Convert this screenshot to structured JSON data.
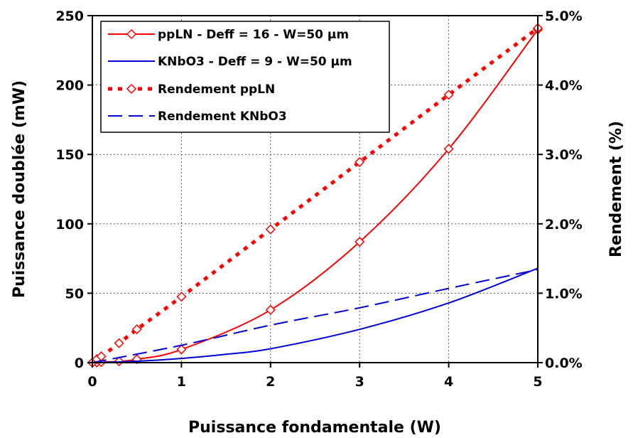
{
  "chart_data": {
    "type": "line",
    "xlabel": "Puissance fondamentale (W)",
    "ylabel": "Puissance doublée (mW)",
    "y2label": "Rendement (%)",
    "xlim": [
      0,
      5
    ],
    "ylim": [
      0,
      250
    ],
    "y2lim": [
      0,
      0.05
    ],
    "x_ticks": [
      "0",
      "1",
      "2",
      "3",
      "4",
      "5"
    ],
    "y_ticks": [
      "0",
      "50",
      "100",
      "150",
      "200",
      "250"
    ],
    "y2_ticks": [
      "0.0%",
      "1.0%",
      "2.0%",
      "3.0%",
      "4.0%",
      "5.0%"
    ],
    "grid": true,
    "legend_position": "top-left",
    "colors": {
      "red": "#ff0000",
      "blue": "#0000dd",
      "grid": "#555555"
    },
    "series": [
      {
        "name": "ppLN - Deff = 16 - W=50 µm",
        "axis": "left",
        "style": "solid-line-with-diamond",
        "x": [
          0,
          0.05,
          0.1,
          0.3,
          0.5,
          1,
          2,
          3,
          4,
          5
        ],
        "y": [
          0,
          0.1,
          0.4,
          0.9,
          2.4,
          9.5,
          38,
          87,
          154,
          240
        ]
      },
      {
        "name": "KNbO3 - Deff = 9 - W=50 µm",
        "axis": "left",
        "style": "solid-line",
        "x": [
          0,
          0.5,
          1,
          1.5,
          2,
          3,
          4,
          5
        ],
        "y": [
          0,
          1,
          3,
          6,
          10,
          24,
          43,
          68
        ]
      },
      {
        "name": "Rendement ppLN",
        "axis": "right",
        "style": "dotted-line-with-diamond",
        "x": [
          0,
          0.05,
          0.1,
          0.3,
          0.5,
          1,
          2,
          3,
          4,
          5
        ],
        "y": [
          0,
          0.0005,
          0.0009,
          0.0028,
          0.0048,
          0.0095,
          0.0192,
          0.0289,
          0.0386,
          0.0482
        ]
      },
      {
        "name": "Rendement KNbO3",
        "axis": "right",
        "style": "dashed-line",
        "x": [
          0,
          1,
          2,
          3,
          4,
          5
        ],
        "y": [
          0,
          0.0025,
          0.0054,
          0.0079,
          0.0107,
          0.0134
        ]
      }
    ]
  }
}
